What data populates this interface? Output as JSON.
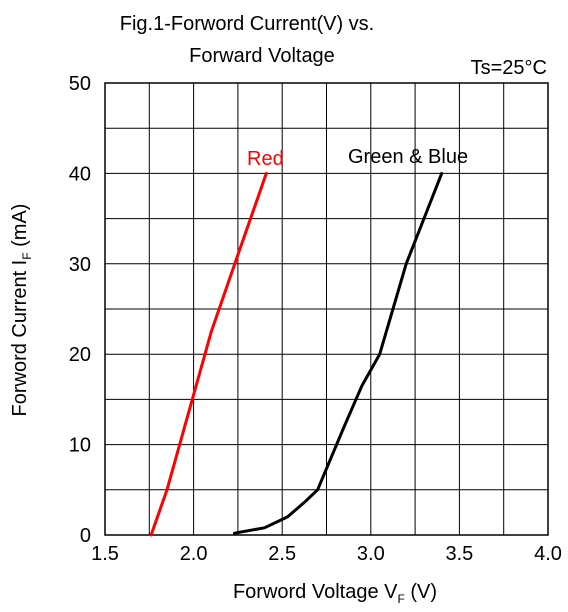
{
  "chart_data": {
    "type": "line",
    "title_line1": "Fig.1-Forword Current(V) vs.",
    "title_line2": "Forward Voltage",
    "condition": "Ts=25°C",
    "xlabel": {
      "main": "Forword Voltage V",
      "sub": "F",
      "unit": " (V)"
    },
    "ylabel": {
      "main": "Forword Current I",
      "sub": "F",
      "unit": "  (mA)"
    },
    "xlim": [
      1.5,
      4.0
    ],
    "ylim": [
      0,
      50
    ],
    "xticks": [
      "1.5",
      "2.0",
      "2.5",
      "3.0",
      "3.5",
      "4.0"
    ],
    "yticks": [
      "0",
      "10",
      "20",
      "30",
      "40",
      "50"
    ],
    "grid": true,
    "series": [
      {
        "name": "Red",
        "color": "#ff0000",
        "points": [
          [
            1.76,
            0
          ],
          [
            1.85,
            5
          ],
          [
            1.95,
            12
          ],
          [
            2.1,
            22.5
          ],
          [
            2.25,
            31
          ],
          [
            2.41,
            40
          ]
        ]
      },
      {
        "name": "Green & Blue",
        "color": "#000000",
        "points": [
          [
            2.23,
            0.2
          ],
          [
            2.4,
            0.8
          ],
          [
            2.53,
            2
          ],
          [
            2.63,
            3.7
          ],
          [
            2.7,
            5
          ],
          [
            2.85,
            12
          ],
          [
            2.95,
            16.5
          ],
          [
            3.05,
            20
          ],
          [
            3.2,
            30
          ],
          [
            3.4,
            40
          ]
        ]
      }
    ]
  }
}
